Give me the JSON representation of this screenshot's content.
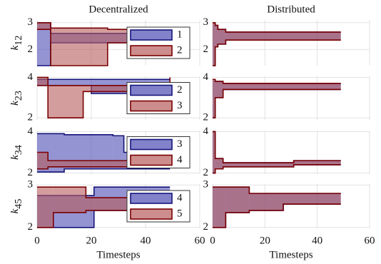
{
  "chart_data": [
    {
      "type": "band",
      "title": "Decentralized",
      "ylabel": "k",
      "ylabel_sub": "12",
      "xlim": [
        0,
        60
      ],
      "xticks": [
        0,
        20,
        40,
        60
      ],
      "show_xtick_labels": false,
      "ylim": [
        1.4,
        3.1
      ],
      "yticks": [
        2,
        3
      ],
      "grid": true,
      "legend": "right",
      "series": [
        {
          "name": "1",
          "color": "#4d4db5",
          "edge_color": "#14147a",
          "x": [
            0,
            5,
            49
          ],
          "lower": [
            1.4,
            2.25,
            2.25
          ],
          "upper": [
            3.0,
            2.6,
            2.6
          ]
        },
        {
          "name": "2",
          "color": "#b85c5c",
          "edge_color": "#7a0000",
          "x": [
            0,
            2,
            5,
            26,
            49
          ],
          "lower": [
            2.75,
            2.75,
            1.4,
            2.25,
            2.25
          ],
          "upper": [
            3.0,
            3.0,
            2.8,
            2.75,
            2.75
          ]
        }
      ]
    },
    {
      "type": "band",
      "title": "Distributed",
      "xlim": [
        0,
        60
      ],
      "xticks": [
        0,
        20,
        40,
        60
      ],
      "show_xtick_labels": false,
      "ylim": [
        1.4,
        3.1
      ],
      "yticks": [
        2,
        3
      ],
      "grid": true,
      "series": [
        {
          "color": "#4d4db5",
          "edge_color": "#14147a",
          "x": [
            0,
            1,
            2,
            5,
            49
          ],
          "lower": [
            1.4,
            2.1,
            2.2,
            2.35,
            2.35
          ],
          "upper": [
            3.0,
            2.9,
            2.75,
            2.65,
            2.65
          ]
        },
        {
          "color": "#b85c5c",
          "edge_color": "#7a0000",
          "x": [
            0,
            1,
            2,
            5,
            49
          ],
          "lower": [
            1.4,
            2.1,
            2.2,
            2.35,
            2.35
          ],
          "upper": [
            3.0,
            2.9,
            2.75,
            2.65,
            2.65
          ]
        }
      ]
    },
    {
      "type": "band",
      "ylabel": "k",
      "ylabel_sub": "23",
      "xlim": [
        0,
        60
      ],
      "xticks": [
        0,
        20,
        40,
        60
      ],
      "show_xtick_labels": false,
      "ylim": [
        1.9,
        4.05
      ],
      "yticks": [
        2,
        4
      ],
      "grid": true,
      "legend": "right",
      "series": [
        {
          "name": "2",
          "color": "#4d4db5",
          "edge_color": "#14147a",
          "x": [
            0,
            20,
            49
          ],
          "lower": [
            3.6,
            3.2,
            3.2
          ],
          "upper": [
            3.9,
            3.9,
            3.9
          ]
        },
        {
          "name": "3",
          "color": "#b85c5c",
          "edge_color": "#7a0000",
          "x": [
            0,
            4,
            17,
            49
          ],
          "lower": [
            3.6,
            2.0,
            3.3,
            3.3
          ],
          "upper": [
            4.0,
            3.6,
            3.6,
            4.0
          ]
        }
      ]
    },
    {
      "type": "band",
      "xlim": [
        0,
        60
      ],
      "xticks": [
        0,
        20,
        40,
        60
      ],
      "show_xtick_labels": false,
      "ylim": [
        1.9,
        4.05
      ],
      "yticks": [
        2,
        4
      ],
      "grid": true,
      "series": [
        {
          "color": "#4d4db5",
          "edge_color": "#14147a",
          "x": [
            0,
            1,
            4,
            49
          ],
          "lower": [
            2.0,
            3.0,
            3.4,
            3.4
          ],
          "upper": [
            3.9,
            3.8,
            3.7,
            3.7
          ]
        },
        {
          "color": "#b85c5c",
          "edge_color": "#7a0000",
          "x": [
            0,
            1,
            4,
            49
          ],
          "lower": [
            2.0,
            3.0,
            3.4,
            3.4
          ],
          "upper": [
            3.9,
            3.8,
            3.7,
            3.7
          ]
        }
      ]
    },
    {
      "type": "band",
      "ylabel": "k",
      "ylabel_sub": "34",
      "xlim": [
        0,
        60
      ],
      "xticks": [
        0,
        20,
        40,
        60
      ],
      "show_xtick_labels": false,
      "ylim": [
        1.95,
        4.05
      ],
      "yticks": [
        2,
        4
      ],
      "grid": true,
      "legend": "right",
      "series": [
        {
          "name": "3",
          "color": "#4d4db5",
          "edge_color": "#14147a",
          "x": [
            0,
            10,
            28,
            32,
            49
          ],
          "lower": [
            2.05,
            2.2,
            2.2,
            2.2,
            2.2
          ],
          "upper": [
            3.9,
            3.85,
            3.8,
            3.0,
            3.0
          ]
        },
        {
          "name": "4",
          "color": "#b85c5c",
          "edge_color": "#7a0000",
          "x": [
            0,
            4,
            49
          ],
          "lower": [
            2.2,
            2.3,
            2.3
          ],
          "upper": [
            3.0,
            2.6,
            2.6
          ]
        }
      ]
    },
    {
      "type": "band",
      "xlim": [
        0,
        60
      ],
      "xticks": [
        0,
        20,
        40,
        60
      ],
      "show_xtick_labels": false,
      "ylim": [
        1.95,
        4.05
      ],
      "yticks": [
        2,
        4
      ],
      "grid": true,
      "series": [
        {
          "color": "#4d4db5",
          "edge_color": "#14147a",
          "x": [
            0,
            1,
            4,
            31,
            49
          ],
          "lower": [
            2.0,
            2.2,
            2.3,
            2.4,
            2.4
          ],
          "upper": [
            4.0,
            2.7,
            2.5,
            2.6,
            2.6
          ]
        },
        {
          "color": "#b85c5c",
          "edge_color": "#7a0000",
          "x": [
            0,
            1,
            4,
            31,
            49
          ],
          "lower": [
            2.0,
            2.2,
            2.3,
            2.4,
            2.4
          ],
          "upper": [
            4.0,
            2.7,
            2.5,
            2.6,
            2.6
          ]
        }
      ]
    },
    {
      "type": "band",
      "ylabel": "k",
      "ylabel_sub": "45",
      "xlabel": "Timesteps",
      "xlim": [
        0,
        60
      ],
      "xticks": [
        0,
        20,
        40,
        60
      ],
      "show_xtick_labels": true,
      "ylim": [
        1.98,
        3.02
      ],
      "yticks": [
        2,
        3
      ],
      "grid": true,
      "legend": "right",
      "series": [
        {
          "name": "4",
          "color": "#4d4db5",
          "edge_color": "#14147a",
          "x": [
            0,
            5,
            21,
            49
          ],
          "lower": [
            2.0,
            2.0,
            2.4,
            2.4
          ],
          "upper": [
            2.75,
            2.75,
            2.95,
            2.95
          ]
        },
        {
          "name": "5",
          "color": "#b85c5c",
          "edge_color": "#7a0000",
          "x": [
            0,
            6,
            18,
            49
          ],
          "lower": [
            2.0,
            2.35,
            2.4,
            2.4
          ],
          "upper": [
            2.95,
            2.95,
            2.7,
            2.7
          ]
        }
      ]
    },
    {
      "type": "band",
      "xlabel": "Timesteps",
      "xlim": [
        0,
        60
      ],
      "xticks": [
        0,
        20,
        40,
        60
      ],
      "show_xtick_labels": true,
      "ylim": [
        1.98,
        3.02
      ],
      "yticks": [
        2,
        3
      ],
      "grid": true,
      "series": [
        {
          "color": "#4d4db5",
          "edge_color": "#14147a",
          "x": [
            0,
            1,
            5,
            14,
            27,
            49
          ],
          "lower": [
            2.0,
            2.0,
            2.35,
            2.4,
            2.55,
            2.55
          ],
          "upper": [
            2.95,
            2.95,
            2.95,
            2.8,
            2.8,
            2.8
          ]
        },
        {
          "color": "#b85c5c",
          "edge_color": "#7a0000",
          "x": [
            0,
            1,
            5,
            14,
            27,
            49
          ],
          "lower": [
            2.0,
            2.0,
            2.35,
            2.4,
            2.55,
            2.55
          ],
          "upper": [
            2.95,
            2.95,
            2.95,
            2.8,
            2.8,
            2.8
          ]
        }
      ]
    }
  ]
}
